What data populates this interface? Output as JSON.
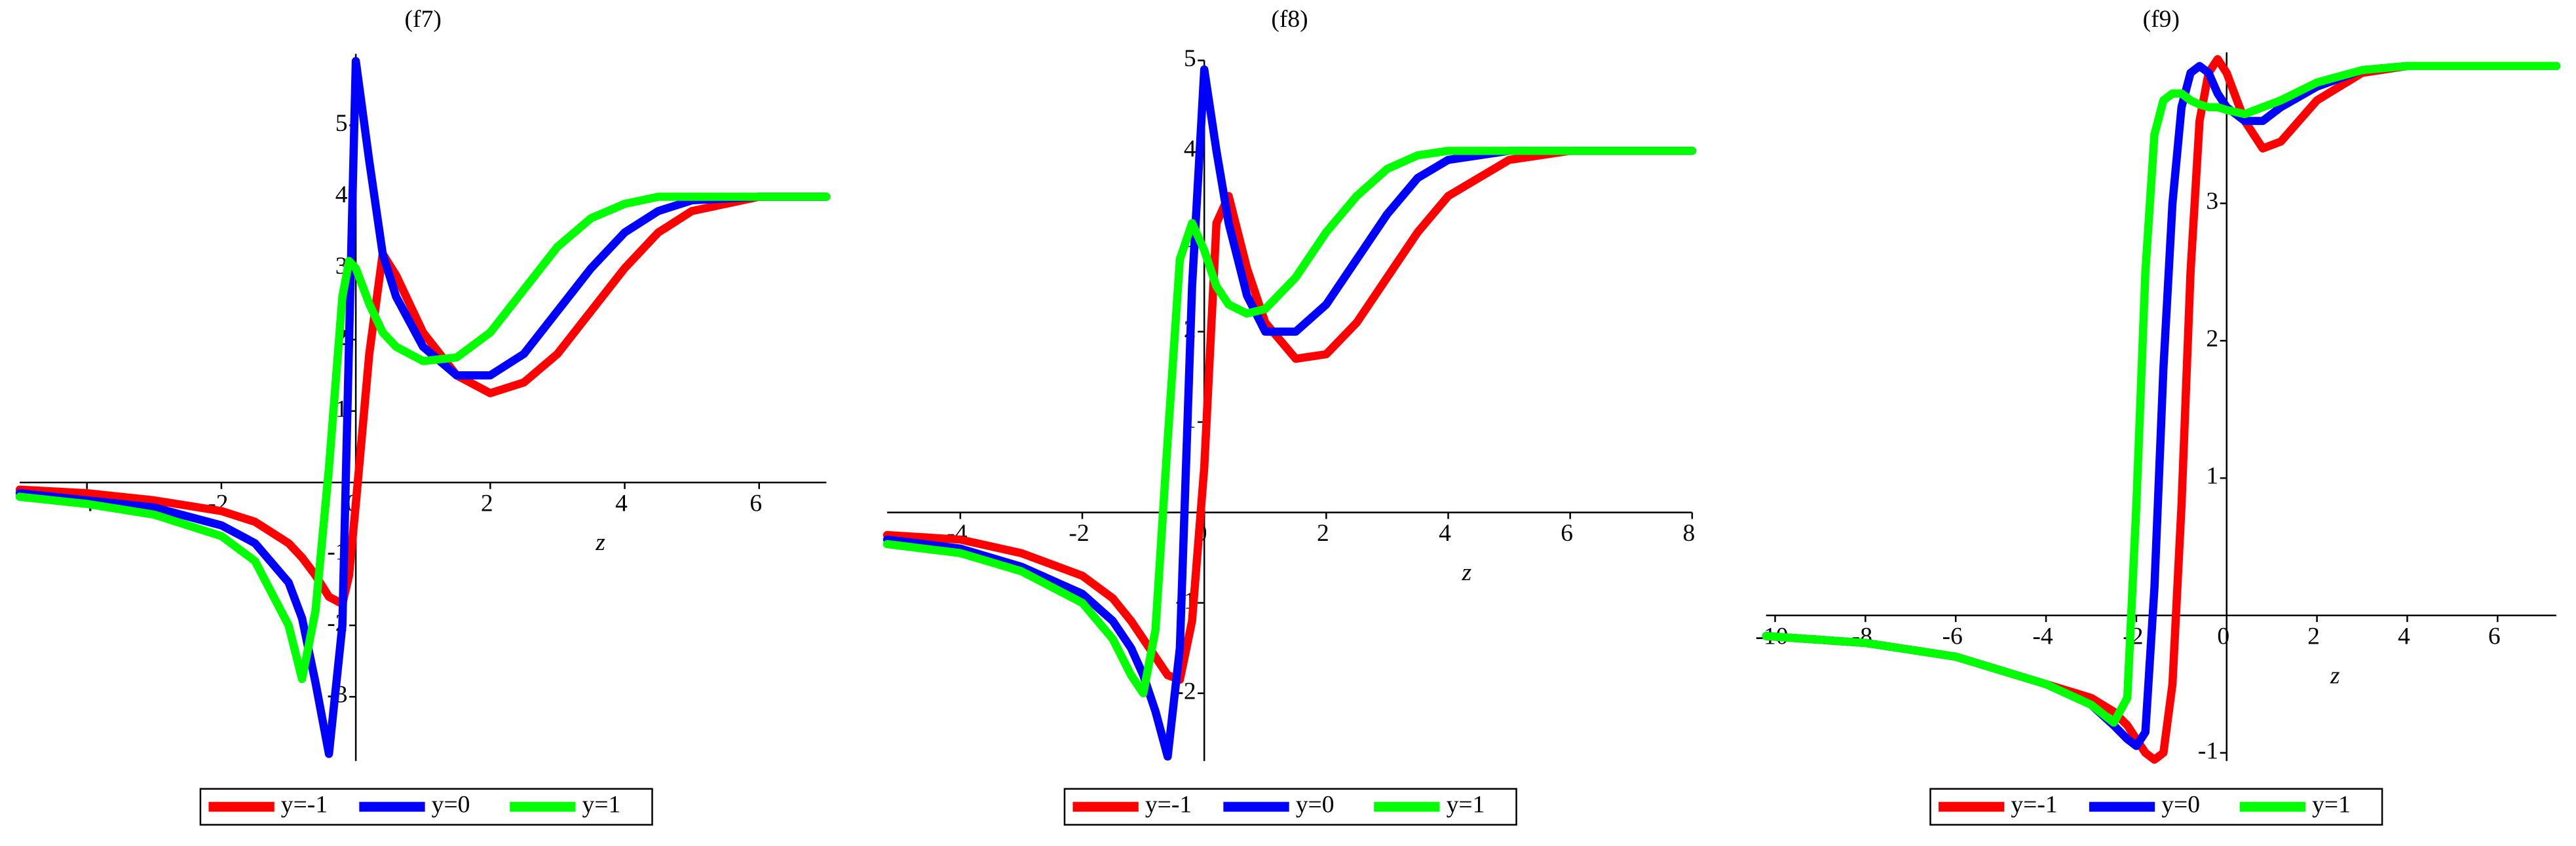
{
  "chart_data": [
    {
      "type": "line",
      "title": "(f7)",
      "x_label": "z",
      "x": [
        -5,
        -4,
        -3,
        -2,
        -1.5,
        -1,
        -0.8,
        -0.6,
        -0.4,
        -0.2,
        -0.1,
        0,
        0.2,
        0.4,
        0.6,
        1,
        1.5,
        2,
        2.5,
        3,
        3.5,
        4,
        4.5,
        5,
        6,
        7
      ],
      "series": [
        {
          "name": "y=-1",
          "color": "#ff0000",
          "values": [
            -0.1,
            -0.15,
            -0.25,
            -0.4,
            -0.55,
            -0.85,
            -1.05,
            -1.3,
            -1.6,
            -1.7,
            -1.3,
            -0.3,
            1.8,
            3.2,
            2.9,
            2.1,
            1.5,
            1.25,
            1.4,
            1.8,
            2.4,
            3.0,
            3.5,
            3.8,
            4.0,
            4.0
          ]
        },
        {
          "name": "y=0",
          "color": "#0000ff",
          "values": [
            -0.15,
            -0.25,
            -0.35,
            -0.6,
            -0.85,
            -1.4,
            -1.9,
            -2.8,
            -3.8,
            -2.0,
            2.0,
            5.9,
            4.5,
            3.2,
            2.6,
            1.9,
            1.5,
            1.5,
            1.8,
            2.4,
            3.0,
            3.5,
            3.8,
            3.95,
            4.0,
            4.0
          ]
        },
        {
          "name": "y=1",
          "color": "#00ff00",
          "values": [
            -0.2,
            -0.3,
            -0.45,
            -0.75,
            -1.1,
            -2.0,
            -2.75,
            -1.8,
            0.2,
            2.6,
            3.1,
            3.0,
            2.5,
            2.1,
            1.9,
            1.7,
            1.75,
            2.1,
            2.7,
            3.3,
            3.7,
            3.9,
            4.0,
            4.0,
            4.0,
            4.0
          ]
        }
      ],
      "xlim": [
        -5,
        7
      ],
      "ylim": [
        -3.9,
        6
      ],
      "xticks": [
        -4,
        -2,
        0,
        2,
        4,
        6
      ],
      "yticks": [
        -3,
        -2,
        -1,
        1,
        2,
        3,
        4,
        5
      ]
    },
    {
      "type": "line",
      "title": "(f8)",
      "x_label": "z",
      "x": [
        -5.2,
        -4,
        -3,
        -2,
        -1.5,
        -1.2,
        -1,
        -0.8,
        -0.6,
        -0.4,
        -0.2,
        0,
        0.2,
        0.4,
        0.7,
        1,
        1.5,
        2,
        2.5,
        3,
        3.5,
        4,
        5,
        6,
        8
      ],
      "series": [
        {
          "name": "y=-1",
          "color": "#ff0000",
          "values": [
            -0.25,
            -0.3,
            -0.45,
            -0.7,
            -0.95,
            -1.2,
            -1.4,
            -1.6,
            -1.8,
            -1.85,
            -1.2,
            0.5,
            3.2,
            3.5,
            2.7,
            2.1,
            1.7,
            1.75,
            2.1,
            2.6,
            3.1,
            3.5,
            3.9,
            4.0,
            4.0
          ]
        },
        {
          "name": "y=0",
          "color": "#0000ff",
          "values": [
            -0.3,
            -0.4,
            -0.6,
            -0.9,
            -1.2,
            -1.5,
            -1.8,
            -2.2,
            -2.7,
            -1.5,
            2.5,
            4.9,
            4.0,
            3.2,
            2.4,
            2.0,
            2.0,
            2.3,
            2.8,
            3.3,
            3.7,
            3.9,
            4.0,
            4.0,
            4.0
          ]
        },
        {
          "name": "y=1",
          "color": "#00ff00",
          "values": [
            -0.35,
            -0.45,
            -0.65,
            -1.0,
            -1.4,
            -1.8,
            -2.0,
            -1.3,
            0.8,
            2.8,
            3.2,
            2.9,
            2.5,
            2.3,
            2.2,
            2.25,
            2.6,
            3.1,
            3.5,
            3.8,
            3.95,
            4.0,
            4.0,
            4.0,
            4.0
          ]
        }
      ],
      "xlim": [
        -5.2,
        8
      ],
      "ylim": [
        -2.75,
        5
      ],
      "xticks": [
        -4,
        -2,
        0,
        2,
        4,
        6,
        8
      ],
      "yticks": [
        -2,
        -1,
        1,
        2,
        3,
        4,
        5
      ]
    },
    {
      "type": "line",
      "title": "(f9)",
      "x_label": "z",
      "x": [
        -10.2,
        -8,
        -6,
        -4,
        -3,
        -2.5,
        -2.2,
        -2,
        -1.8,
        -1.6,
        -1.4,
        -1.2,
        -1,
        -0.8,
        -0.6,
        -0.4,
        -0.2,
        0,
        0.4,
        0.8,
        1.2,
        2,
        3,
        4,
        5,
        7.3
      ],
      "series": [
        {
          "name": "y=-1",
          "color": "#ff0000",
          "values": [
            -0.15,
            -0.2,
            -0.3,
            -0.5,
            -0.6,
            -0.7,
            -0.8,
            -0.9,
            -1.0,
            -1.05,
            -1.0,
            -0.5,
            0.8,
            2.5,
            3.6,
            3.95,
            4.05,
            3.95,
            3.6,
            3.4,
            3.45,
            3.75,
            3.95,
            4.0,
            4.0,
            4.0
          ]
        },
        {
          "name": "y=0",
          "color": "#0000ff",
          "values": [
            -0.15,
            -0.2,
            -0.3,
            -0.5,
            -0.65,
            -0.8,
            -0.9,
            -0.95,
            -0.85,
            0.2,
            1.8,
            3.0,
            3.7,
            3.95,
            4.0,
            3.95,
            3.8,
            3.7,
            3.6,
            3.6,
            3.7,
            3.85,
            3.97,
            4.0,
            4.0,
            4.0
          ]
        },
        {
          "name": "y=1",
          "color": "#00ff00",
          "values": [
            -0.15,
            -0.2,
            -0.3,
            -0.5,
            -0.65,
            -0.78,
            -0.6,
            0.8,
            2.5,
            3.5,
            3.75,
            3.8,
            3.8,
            3.75,
            3.72,
            3.7,
            3.7,
            3.68,
            3.65,
            3.7,
            3.75,
            3.88,
            3.97,
            4.0,
            4.0,
            4.0
          ]
        }
      ],
      "xlim": [
        -10.2,
        7.3
      ],
      "ylim": [
        -1.06,
        4.1
      ],
      "xticks": [
        -10,
        -8,
        -6,
        -4,
        -2,
        0,
        2,
        4,
        6
      ],
      "yticks": [
        -1,
        1,
        2,
        3
      ]
    }
  ]
}
